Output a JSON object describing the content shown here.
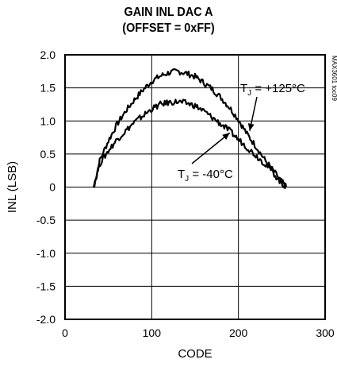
{
  "chart_data": {
    "type": "line",
    "title_lines": [
      "GAIN INL DAC A",
      "(OFFSET = 0xFF)"
    ],
    "xlabel": "CODE",
    "ylabel": "INL (LSB)",
    "xlim": [
      0,
      300
    ],
    "ylim": [
      -2.0,
      2.0
    ],
    "x_ticks": [
      "0",
      "100",
      "200",
      "300"
    ],
    "y_ticks": [
      "2.0",
      "1.5",
      "1.0",
      "0.5",
      "0",
      "-0.5",
      "-1.0",
      "-1.5",
      "-2.0"
    ],
    "grid": "vertical lines at x = 100 and 200, horizontal lines at every 0.5",
    "series": [
      {
        "name": "T_J = +125°C",
        "x": [
          33,
          40,
          50,
          60,
          70,
          80,
          90,
          100,
          110,
          120,
          130,
          140,
          150,
          160,
          170,
          180,
          190,
          200,
          210,
          220,
          230,
          240,
          250,
          255
        ],
        "values": [
          0.0,
          0.4,
          0.7,
          0.95,
          1.15,
          1.32,
          1.47,
          1.6,
          1.68,
          1.73,
          1.75,
          1.72,
          1.67,
          1.58,
          1.48,
          1.35,
          1.2,
          1.02,
          0.8,
          0.62,
          0.42,
          0.25,
          0.08,
          0.0
        ]
      },
      {
        "name": "T_J = -40°C",
        "x": [
          33,
          40,
          50,
          60,
          70,
          80,
          90,
          100,
          110,
          120,
          130,
          140,
          150,
          160,
          170,
          180,
          190,
          200,
          210,
          220,
          230,
          240,
          250,
          255
        ],
        "values": [
          0.0,
          0.35,
          0.55,
          0.72,
          0.85,
          0.98,
          1.08,
          1.18,
          1.25,
          1.28,
          1.29,
          1.27,
          1.23,
          1.15,
          1.05,
          0.95,
          0.85,
          0.72,
          0.6,
          0.48,
          0.36,
          0.22,
          0.05,
          0.0
        ]
      }
    ],
    "annotations": [
      {
        "main": "T",
        "sub": "J",
        "rest": " = +125°C"
      },
      {
        "main": "T",
        "sub": "J",
        "rest": " = -40°C"
      }
    ],
    "side_text": "MAX3601 toc09"
  }
}
